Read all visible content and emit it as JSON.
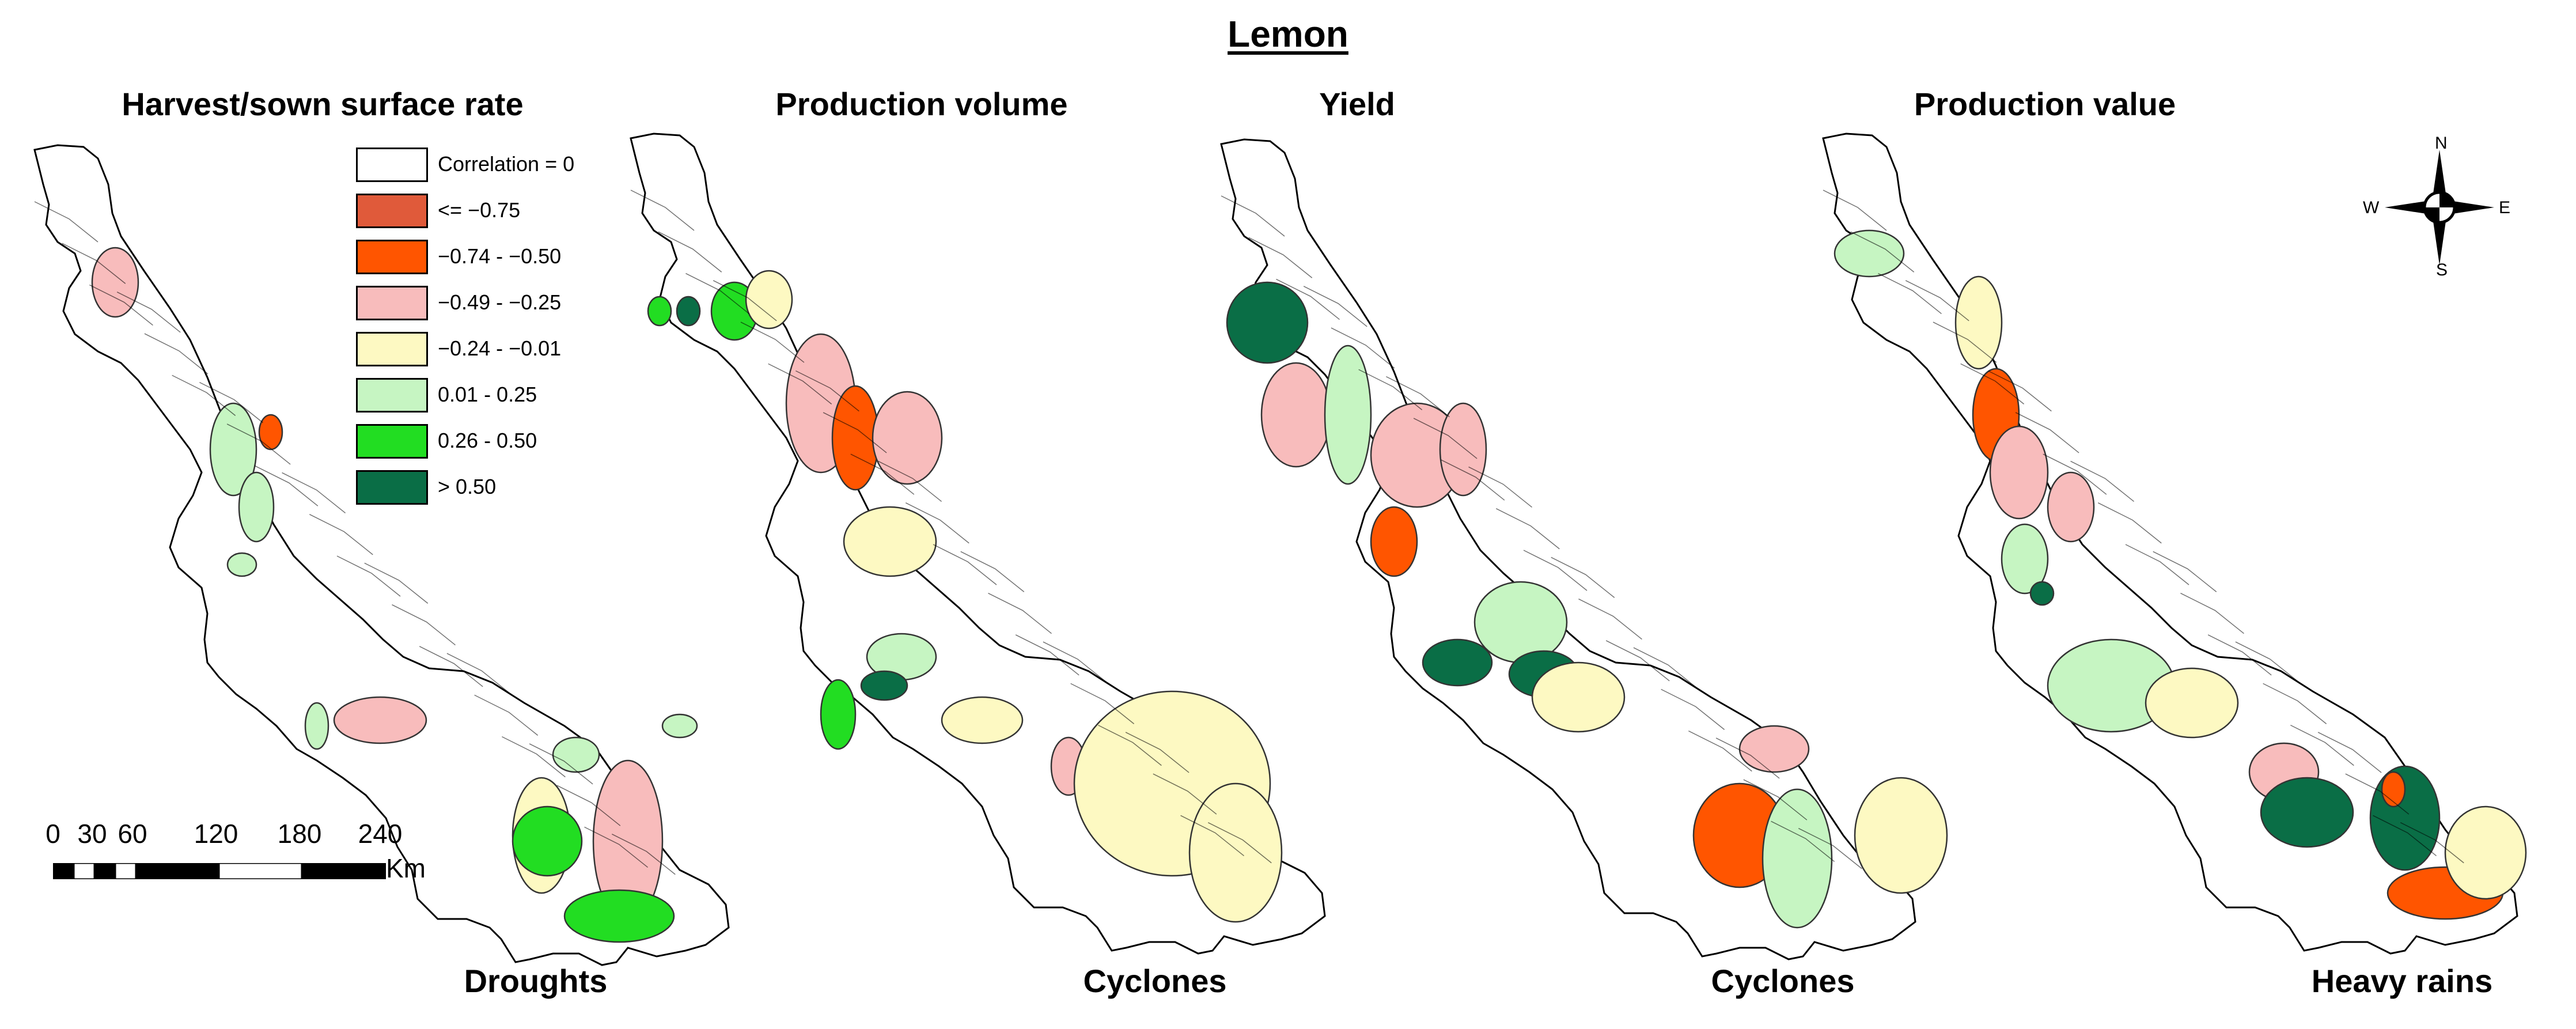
{
  "title": "Lemon",
  "panels": [
    {
      "title": "Harvest/sown surface rate",
      "caption": "Droughts"
    },
    {
      "title": "Production volume",
      "caption": "Cyclones"
    },
    {
      "title": "Yield",
      "caption": "Cyclones"
    },
    {
      "title": "Production value",
      "caption": "Heavy rains"
    }
  ],
  "legend": [
    {
      "label": "Correlation = 0",
      "color": "#ffffff"
    },
    {
      "label": "<= −0.75",
      "color": "#e05a3a"
    },
    {
      "label": "−0.74 - −0.50",
      "color": "#ff5500"
    },
    {
      "label": "−0.49 - −0.25",
      "color": "#f8bcbc"
    },
    {
      "label": "−0.24 - −0.01",
      "color": "#fdf9c2"
    },
    {
      "label": "0.01 - 0.25",
      "color": "#c6f5c2"
    },
    {
      "label": "0.26 - 0.50",
      "color": "#22dd22"
    },
    {
      "label": "> 0.50",
      "color": "#0a6e46"
    }
  ],
  "scale_bar": {
    "ticks": [
      "0",
      "30",
      "60",
      "120",
      "180",
      "240"
    ],
    "unit": "Km"
  },
  "compass": {
    "north": "N",
    "south": "S",
    "east": "E",
    "west": "W"
  }
}
